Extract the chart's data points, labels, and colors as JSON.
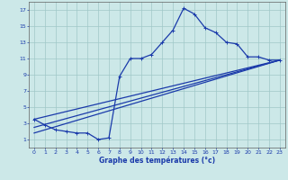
{
  "xlabel": "Graphe des températures (°c)",
  "background_color": "#cce8e8",
  "grid_color": "#a0c8c8",
  "line_color": "#1a3aaa",
  "xlim": [
    -0.5,
    23.5
  ],
  "ylim": [
    0,
    18
  ],
  "xticks": [
    0,
    1,
    2,
    3,
    4,
    5,
    6,
    7,
    8,
    9,
    10,
    11,
    12,
    13,
    14,
    15,
    16,
    17,
    18,
    19,
    20,
    21,
    22,
    23
  ],
  "yticks": [
    1,
    3,
    5,
    7,
    9,
    11,
    13,
    15,
    17
  ],
  "line1_x": [
    0,
    1,
    2,
    3,
    4,
    5,
    6,
    7,
    8,
    9,
    10,
    11,
    12,
    13,
    14,
    15,
    16,
    17,
    18,
    19,
    20,
    21,
    22,
    23
  ],
  "line1_y": [
    3.5,
    2.8,
    2.2,
    2.0,
    1.8,
    1.8,
    1.0,
    1.2,
    8.8,
    11.0,
    11.0,
    11.5,
    13.0,
    14.5,
    17.2,
    16.5,
    14.8,
    14.2,
    13.0,
    12.8,
    11.2,
    11.2,
    10.8,
    10.8
  ],
  "line2_x": [
    0,
    23
  ],
  "line2_y": [
    3.5,
    10.8
  ],
  "line3_x": [
    0,
    23
  ],
  "line3_y": [
    1.8,
    10.8
  ],
  "line4_x": [
    0,
    23
  ],
  "line4_y": [
    2.5,
    10.8
  ],
  "marker_size": 2.5,
  "line_width": 0.9,
  "tick_fontsize": 4.5
}
